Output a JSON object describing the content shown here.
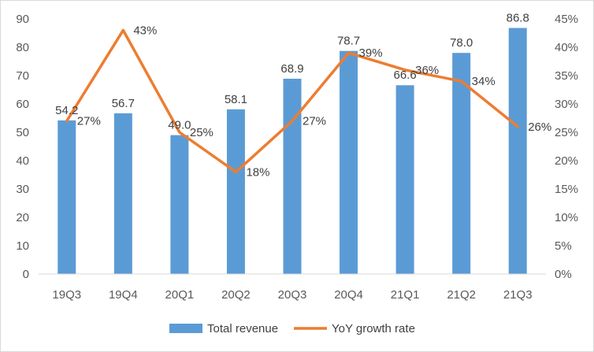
{
  "chart_data": {
    "type": "bar",
    "categories": [
      "19Q3",
      "19Q4",
      "20Q1",
      "20Q2",
      "20Q3",
      "20Q4",
      "21Q1",
      "21Q2",
      "21Q3"
    ],
    "series": [
      {
        "name": "Total revenue",
        "type": "bar",
        "axis": "left",
        "color": "#5B9BD5",
        "values": [
          54.2,
          56.7,
          49.0,
          58.1,
          68.9,
          78.7,
          66.6,
          78.0,
          86.8
        ],
        "labels": [
          "54.2",
          "56.7",
          "49.0",
          "58.1",
          "68.9",
          "78.7",
          "66.6",
          "78.0",
          "86.8"
        ]
      },
      {
        "name": "YoY growth rate",
        "type": "line",
        "axis": "right",
        "color": "#ED7D31",
        "values": [
          27,
          43,
          25,
          18,
          27,
          39,
          36,
          34,
          26
        ],
        "labels": [
          "27%",
          "43%",
          "25%",
          "18%",
          "27%",
          "39%",
          "36%",
          "34%",
          "26%"
        ]
      }
    ],
    "y_left": {
      "min": 0,
      "max": 90,
      "step": 10,
      "ticks": [
        "0",
        "10",
        "20",
        "30",
        "40",
        "50",
        "60",
        "70",
        "80",
        "90"
      ]
    },
    "y_right": {
      "min": 0,
      "max": 45,
      "step": 5,
      "ticks": [
        "0%",
        "5%",
        "10%",
        "15%",
        "20%",
        "25%",
        "30%",
        "35%",
        "40%",
        "45%"
      ]
    },
    "grid": false,
    "legend_position": "bottom"
  }
}
